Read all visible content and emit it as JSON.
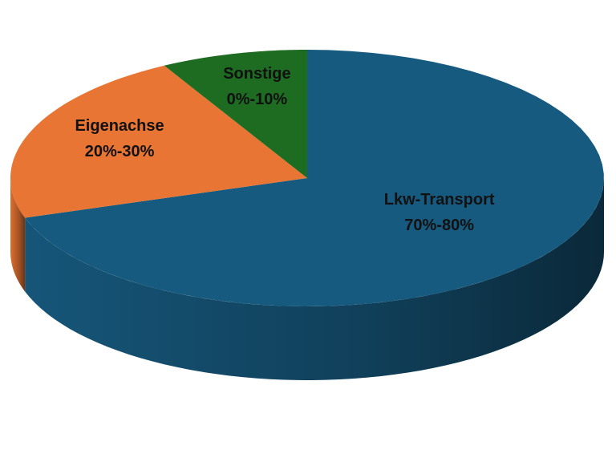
{
  "chart_data": {
    "type": "pie",
    "categories": [
      "Lkw-Transport",
      "Eigenachse",
      "Sonstige"
    ],
    "values": [
      70,
      22,
      8
    ],
    "value_labels": [
      "70%-80%",
      "20%-30%",
      "0%-10%"
    ],
    "colors": [
      "#175a7f",
      "#e87533",
      "#1e6b22"
    ]
  }
}
